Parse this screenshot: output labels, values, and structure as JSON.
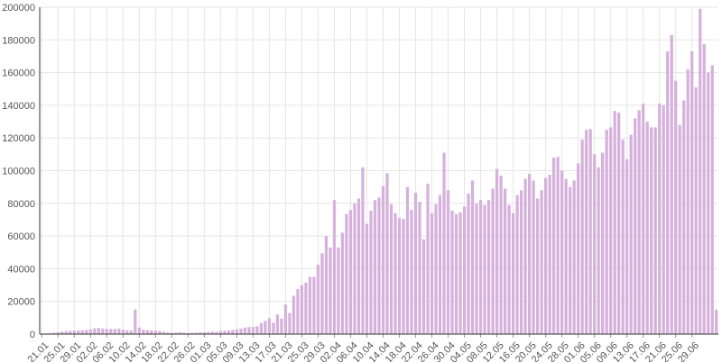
{
  "chart_data": {
    "type": "bar",
    "title": "",
    "xlabel": "",
    "ylabel": "",
    "ylim": [
      0,
      200000
    ],
    "yticks": [
      0,
      20000,
      40000,
      60000,
      80000,
      100000,
      120000,
      140000,
      160000,
      180000,
      200000
    ],
    "grid": true,
    "bar_color": "#d5b1dc",
    "grid_color": "#e5e5e5",
    "axis_color": "#333333",
    "x_start": "21.01",
    "x_end": "30.06",
    "x_tick_labels": [
      "21.01",
      "25.01",
      "29.01",
      "02.02",
      "06.02",
      "10.02",
      "14.02",
      "18.02",
      "22.02",
      "26.02",
      "01.03",
      "05.03",
      "09.03",
      "13.03",
      "17.03",
      "21.03",
      "25.03",
      "29.03",
      "02.04",
      "06.04",
      "10.04",
      "14.04",
      "18.04",
      "22.04",
      "26.04",
      "30.04",
      "04.05",
      "08.05",
      "12.05",
      "16.05",
      "20.05",
      "24.05",
      "28.05",
      "01.06",
      "05.06",
      "09.06",
      "13.06",
      "17.06",
      "21.06",
      "25.06",
      "29.06"
    ],
    "values": [
      100,
      300,
      500,
      800,
      1200,
      1500,
      1800,
      2000,
      2100,
      2200,
      2300,
      2500,
      2900,
      3500,
      3700,
      3400,
      3100,
      3200,
      3100,
      3300,
      2800,
      2400,
      2200,
      15000,
      4000,
      2800,
      2400,
      2300,
      2100,
      1900,
      1400,
      900,
      700,
      900,
      1100,
      800,
      600,
      700,
      900,
      1000,
      1100,
      1300,
      1400,
      1300,
      1900,
      2000,
      2200,
      2500,
      2900,
      3300,
      4000,
      4300,
      4300,
      4800,
      6800,
      8100,
      9700,
      7000,
      12000,
      9500,
      18000,
      12800,
      23500,
      27500,
      30000,
      31500,
      35000,
      35000,
      42500,
      49500,
      60000,
      53000,
      82000,
      53000,
      62000,
      73500,
      76000,
      80000,
      83000,
      102000,
      67500,
      75500,
      82000,
      83500,
      90500,
      98500,
      79500,
      74000,
      71000,
      70500,
      90000,
      76000,
      86500,
      81000,
      58000,
      92000,
      74000,
      79500,
      85000,
      111000,
      88000,
      75500,
      73500,
      74500,
      78000,
      86000,
      94000,
      80000,
      82000,
      79000,
      82000,
      89000,
      101000,
      97000,
      89000,
      79000,
      74000,
      85000,
      88000,
      95000,
      98000,
      94000,
      83000,
      88000,
      95500,
      97500,
      108000,
      108500,
      100000,
      95000,
      90000,
      94000,
      104500,
      119000,
      125000,
      125500,
      110000,
      102000,
      111000,
      125000,
      126500,
      136500,
      135500,
      119000,
      107000,
      122000,
      132000,
      137000,
      141000,
      130000,
      126500,
      126500,
      141000,
      140000,
      173000,
      183000,
      155000,
      128000,
      143000,
      162000,
      173000,
      151000,
      199000,
      177500,
      160000,
      164500,
      15000
    ]
  }
}
